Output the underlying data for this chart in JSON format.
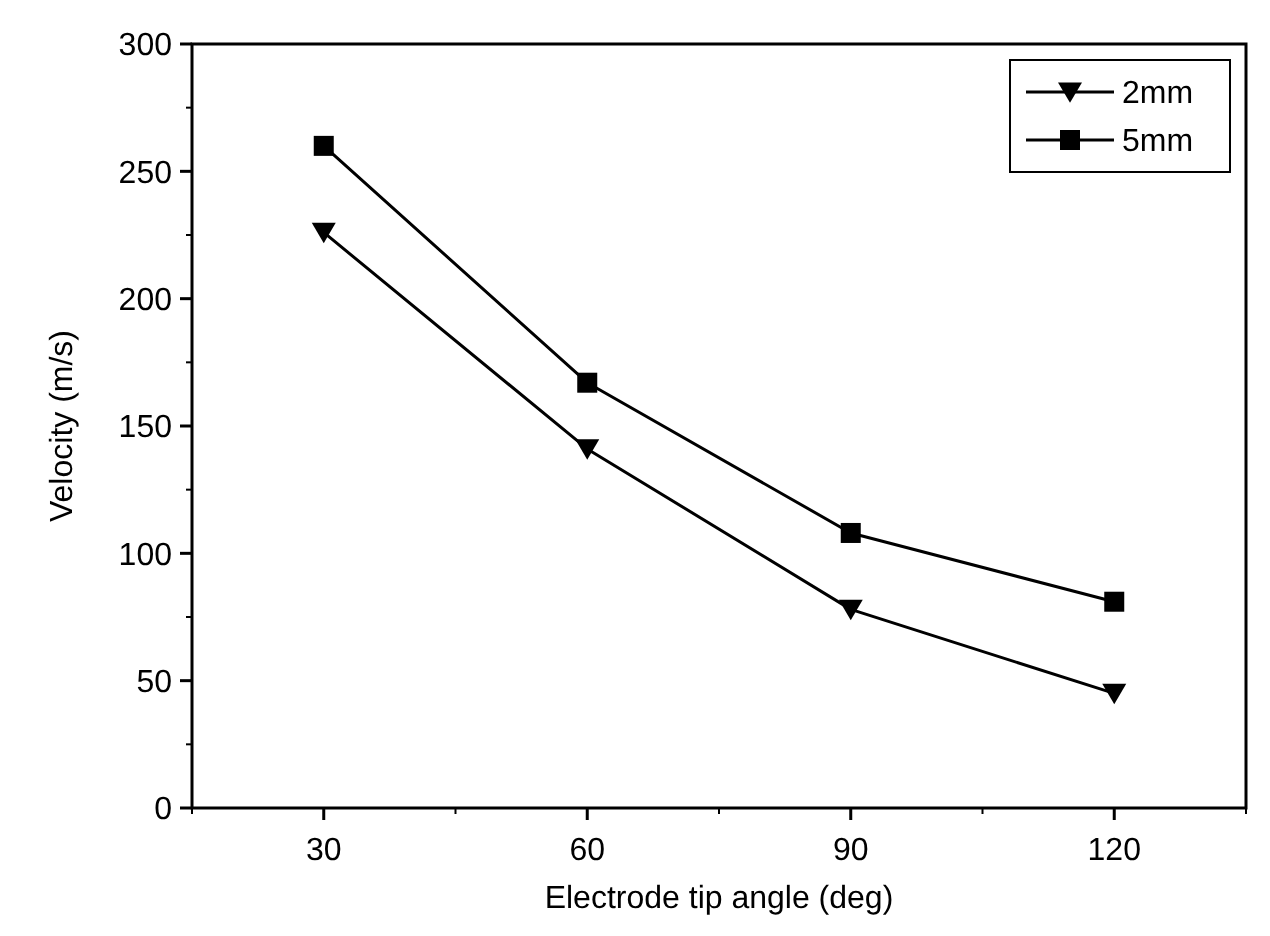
{
  "chart_data": {
    "type": "line",
    "xlabel": "Electrode tip angle (deg)",
    "ylabel": "Velocity (m/s)",
    "x": [
      30,
      60,
      90,
      120
    ],
    "series": [
      {
        "name": "2mm",
        "color": "#000000",
        "values": [
          226,
          141,
          78,
          45
        ],
        "marker": "triangle"
      },
      {
        "name": "5mm",
        "color": "#000000",
        "values": [
          260,
          167,
          108,
          81
        ],
        "marker": "square"
      }
    ],
    "xlim": [
      15,
      135
    ],
    "xticks": [
      30,
      60,
      90,
      120
    ],
    "ylim": [
      0,
      300
    ],
    "yticks": [
      0,
      50,
      100,
      150,
      200,
      250,
      300
    ],
    "legend": "top right",
    "grid": false
  }
}
